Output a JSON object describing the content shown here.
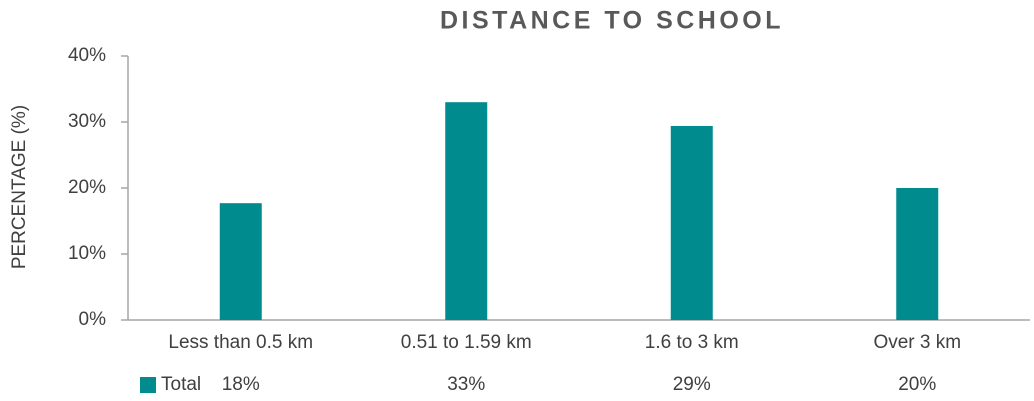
{
  "chart_data": {
    "type": "bar",
    "title": "DISTANCE TO SCHOOL",
    "y_label": "PERCENTAGE (%)",
    "categories": [
      "Less than 0.5 km",
      "0.51 to 1.59 km",
      "1.6 to 3 km",
      "Over 3 km"
    ],
    "series": [
      {
        "name": "Total",
        "color": "#008b8f",
        "values": [
          17.7,
          33.0,
          29.4,
          20.0
        ],
        "value_labels": [
          "18%",
          "33%",
          "29%",
          "20%"
        ]
      }
    ],
    "ylim": [
      0,
      40
    ],
    "yticks": [
      {
        "value": 0,
        "label": "0%"
      },
      {
        "value": 10,
        "label": "10%"
      },
      {
        "value": 20,
        "label": "20%"
      },
      {
        "value": 30,
        "label": "30%"
      },
      {
        "value": 40,
        "label": "40%"
      }
    ],
    "grid": false,
    "legend": "bottom-left"
  }
}
